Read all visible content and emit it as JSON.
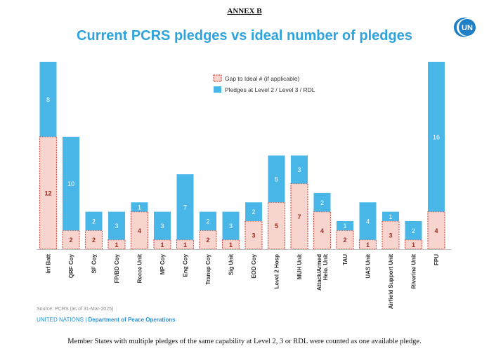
{
  "header": {
    "annex": "ANNEX B",
    "title": "Current PCRS pledges vs ideal number of pledges",
    "logo_text": "UN"
  },
  "colors": {
    "pledges": "#49b6e8",
    "gap_fill": "#f8d4cf",
    "gap_border": "#d44a3c",
    "gap_label": "#9c2a1e",
    "title": "#2ea3dc"
  },
  "chart_data": {
    "type": "bar",
    "stacked": true,
    "categories": [
      "Inf Batt",
      "QRF Coy",
      "SF Coy",
      "FP/BD Coy",
      "Recce Unit",
      "MP Coy",
      "Eng Coy",
      "Transp Coy",
      "Sig Unit",
      "EOD Coy",
      "Level 2 Hosp",
      "MUH Unit",
      "Attack/Armed Helo. Unit",
      "TAU",
      "UAS Unit",
      "Airfield Support Unit",
      "Riverine Unit",
      "FPU"
    ],
    "series": [
      {
        "name": "Gap to Ideal #  (if applicable)",
        "values": [
          12,
          2,
          2,
          1,
          4,
          1,
          1,
          2,
          1,
          3,
          5,
          7,
          4,
          2,
          1,
          3,
          1,
          4
        ]
      },
      {
        "name": "Pledges at Level 2 / Level 3 / RDL",
        "values": [
          8,
          10,
          2,
          3,
          1,
          3,
          7,
          2,
          3,
          2,
          5,
          3,
          2,
          1,
          4,
          1,
          2,
          16
        ]
      }
    ],
    "ylim": [
      0,
      20
    ],
    "legend_position": "top-center",
    "grid": false
  },
  "footer": {
    "source": "Source: PCRS (as of 31-Mar-2025)",
    "org": "UNITED NATIONS",
    "separator": " | ",
    "dept": "Department of Peace Operations",
    "note": "Member States with multiple pledges of the same capability at Level 2, 3 or RDL were counted as one available pledge."
  }
}
